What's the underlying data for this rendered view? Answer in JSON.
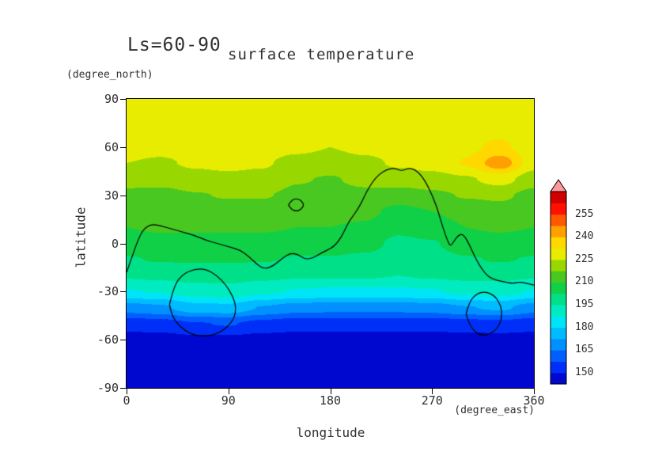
{
  "figure": {
    "title_left": "Ls=60-90",
    "title_right": "surface temperature",
    "y_axis": {
      "label": "latitude",
      "unit": "(degree_north)",
      "tick_labels": [
        "90",
        "60",
        "30",
        "0",
        "-30",
        "-60",
        "-90"
      ]
    },
    "x_axis": {
      "label": "longitude",
      "unit": "(degree_east)",
      "tick_labels": [
        "0",
        "90",
        "180",
        "270",
        "360"
      ]
    },
    "text_color": "#303030"
  },
  "chart_data": {
    "type": "heatmap",
    "title": "Ls=60-90 surface temperature",
    "xlabel": "longitude (degree_east)",
    "ylabel": "latitude (degree_north)",
    "x_range": [
      0,
      360
    ],
    "y_range": [
      -90,
      90
    ],
    "x_ticks": [
      0,
      90,
      180,
      270,
      360
    ],
    "y_ticks": [
      90,
      60,
      30,
      0,
      -30,
      -60,
      -90
    ],
    "grid_lines": false,
    "legend_position": "right",
    "grid": {
      "lons": [
        0,
        30,
        60,
        90,
        120,
        150,
        180,
        210,
        240,
        270,
        300,
        330,
        360
      ],
      "lats": [
        -90,
        -80,
        -70,
        -60,
        -50,
        -40,
        -30,
        -20,
        -10,
        0,
        10,
        20,
        30,
        40,
        50,
        60,
        70,
        80,
        90
      ],
      "values": [
        [
          144,
          144,
          144,
          144,
          144,
          144,
          144,
          144,
          144,
          144,
          144,
          144,
          144
        ],
        [
          144,
          144,
          144,
          144,
          144,
          144,
          144,
          144,
          144,
          144,
          144,
          144,
          144
        ],
        [
          145,
          145,
          145,
          145,
          145,
          145,
          145,
          145,
          145,
          145,
          145,
          145,
          145
        ],
        [
          147,
          147,
          148,
          148,
          147,
          147,
          147,
          147,
          147,
          147,
          147,
          147,
          147
        ],
        [
          153,
          154,
          157,
          158,
          155,
          153,
          153,
          153,
          153,
          153,
          154,
          155,
          153
        ],
        [
          169,
          171,
          177,
          178,
          172,
          169,
          168,
          168,
          168,
          169,
          172,
          174,
          169
        ],
        [
          187,
          188,
          191,
          192,
          189,
          187,
          186,
          186,
          186,
          187,
          189,
          190,
          187
        ],
        [
          196,
          197,
          198,
          198,
          197,
          196,
          196,
          196,
          195,
          196,
          197,
          197,
          196
        ],
        [
          202,
          203,
          203,
          203,
          203,
          202,
          202,
          201,
          199,
          200,
          202,
          203,
          202
        ],
        [
          206,
          207,
          207,
          207,
          207,
          206,
          206,
          205,
          201,
          202,
          206,
          207,
          206
        ],
        [
          210,
          211,
          211,
          211,
          211,
          210,
          210,
          209,
          204,
          206,
          210,
          211,
          210
        ],
        [
          213,
          213,
          214,
          214,
          214,
          213,
          213,
          212,
          208,
          210,
          213,
          214,
          213
        ],
        [
          215,
          215,
          217,
          218,
          218,
          216,
          215,
          216,
          214,
          216,
          218,
          219,
          215
        ],
        [
          221,
          220,
          222,
          223,
          222,
          218,
          217,
          219,
          221,
          222,
          224,
          228,
          221
        ],
        [
          225,
          224,
          226,
          227,
          226,
          222,
          221,
          223,
          226,
          228,
          233,
          245,
          228
        ],
        [
          228,
          227,
          228,
          229,
          229,
          227,
          225,
          227,
          228,
          229,
          231,
          234,
          228
        ],
        [
          229,
          229,
          229,
          229,
          229,
          229,
          228,
          229,
          229,
          229,
          230,
          231,
          229
        ],
        [
          228,
          228,
          228,
          228,
          228,
          228,
          228,
          228,
          228,
          228,
          228,
          228,
          228
        ],
        [
          227,
          227,
          227,
          227,
          227,
          227,
          227,
          227,
          227,
          227,
          227,
          227,
          227
        ]
      ]
    },
    "colorbar": {
      "levels": [
        142.5,
        150,
        157.5,
        165,
        172.5,
        180,
        187.5,
        195,
        202.5,
        210,
        217.5,
        225,
        232.5,
        240,
        247.5,
        255,
        262.5,
        270
      ],
      "colors": [
        "#0008D0",
        "#0030F8",
        "#0060FF",
        "#0090FF",
        "#00BCFF",
        "#00E4F8",
        "#00ECC0",
        "#00E088",
        "#10D048",
        "#48C820",
        "#98D800",
        "#E8EC00",
        "#FFD800",
        "#FFA000",
        "#FF5800",
        "#FF1000",
        "#D00000"
      ],
      "over_color": "#FF9898",
      "labels": [
        "255",
        "240",
        "225",
        "210",
        "195",
        "180",
        "165",
        "150"
      ]
    },
    "contour_overlay": {
      "color": "#000000",
      "segments": [
        [
          [
            0,
            -18
          ],
          [
            5,
            -8
          ],
          [
            10,
            2
          ],
          [
            15,
            9
          ],
          [
            22,
            12
          ],
          [
            30,
            11
          ],
          [
            40,
            9
          ],
          [
            50,
            7
          ],
          [
            60,
            5
          ],
          [
            70,
            2
          ],
          [
            80,
            0
          ],
          [
            90,
            -2
          ],
          [
            100,
            -4
          ],
          [
            108,
            -8
          ],
          [
            115,
            -13
          ],
          [
            122,
            -16
          ],
          [
            130,
            -14
          ],
          [
            138,
            -9
          ],
          [
            145,
            -6
          ],
          [
            152,
            -7
          ],
          [
            158,
            -10
          ],
          [
            165,
            -9
          ],
          [
            172,
            -6
          ],
          [
            178,
            -4
          ],
          [
            183,
            -2
          ],
          [
            188,
            2
          ],
          [
            192,
            7
          ],
          [
            196,
            13
          ],
          [
            200,
            17
          ],
          [
            204,
            21
          ],
          [
            208,
            26
          ],
          [
            212,
            32
          ],
          [
            217,
            38
          ],
          [
            223,
            43
          ],
          [
            230,
            46
          ],
          [
            237,
            47
          ],
          [
            243,
            45
          ],
          [
            249,
            47
          ],
          [
            255,
            46
          ],
          [
            261,
            42
          ],
          [
            266,
            36
          ],
          [
            270,
            30
          ],
          [
            274,
            23
          ],
          [
            277,
            16
          ],
          [
            280,
            9
          ],
          [
            283,
            3
          ],
          [
            286,
            -2
          ],
          [
            289,
            1
          ],
          [
            293,
            5
          ],
          [
            297,
            6
          ],
          [
            301,
            2
          ],
          [
            305,
            -4
          ],
          [
            309,
            -10
          ],
          [
            314,
            -16
          ],
          [
            320,
            -21
          ],
          [
            327,
            -23
          ],
          [
            334,
            -24
          ],
          [
            341,
            -25
          ],
          [
            348,
            -24
          ],
          [
            354,
            -25
          ],
          [
            360,
            -26
          ]
        ],
        [
          [
            143,
            24
          ],
          [
            146,
            27
          ],
          [
            150,
            28
          ],
          [
            154,
            27
          ],
          [
            157,
            24
          ],
          [
            154,
            21
          ],
          [
            150,
            20
          ],
          [
            146,
            21
          ],
          [
            143,
            24
          ]
        ],
        [
          [
            38,
            -38
          ],
          [
            42,
            -26
          ],
          [
            50,
            -19
          ],
          [
            60,
            -16
          ],
          [
            70,
            -16
          ],
          [
            80,
            -20
          ],
          [
            88,
            -26
          ],
          [
            94,
            -33
          ],
          [
            97,
            -40
          ],
          [
            95,
            -47
          ],
          [
            88,
            -53
          ],
          [
            78,
            -57
          ],
          [
            66,
            -58
          ],
          [
            55,
            -56
          ],
          [
            46,
            -51
          ],
          [
            40,
            -45
          ],
          [
            38,
            -38
          ]
        ],
        [
          [
            300,
            -44
          ],
          [
            303,
            -36
          ],
          [
            310,
            -31
          ],
          [
            318,
            -30
          ],
          [
            326,
            -33
          ],
          [
            331,
            -39
          ],
          [
            332,
            -46
          ],
          [
            328,
            -53
          ],
          [
            320,
            -57
          ],
          [
            311,
            -57
          ],
          [
            304,
            -52
          ],
          [
            300,
            -44
          ]
        ]
      ]
    }
  }
}
